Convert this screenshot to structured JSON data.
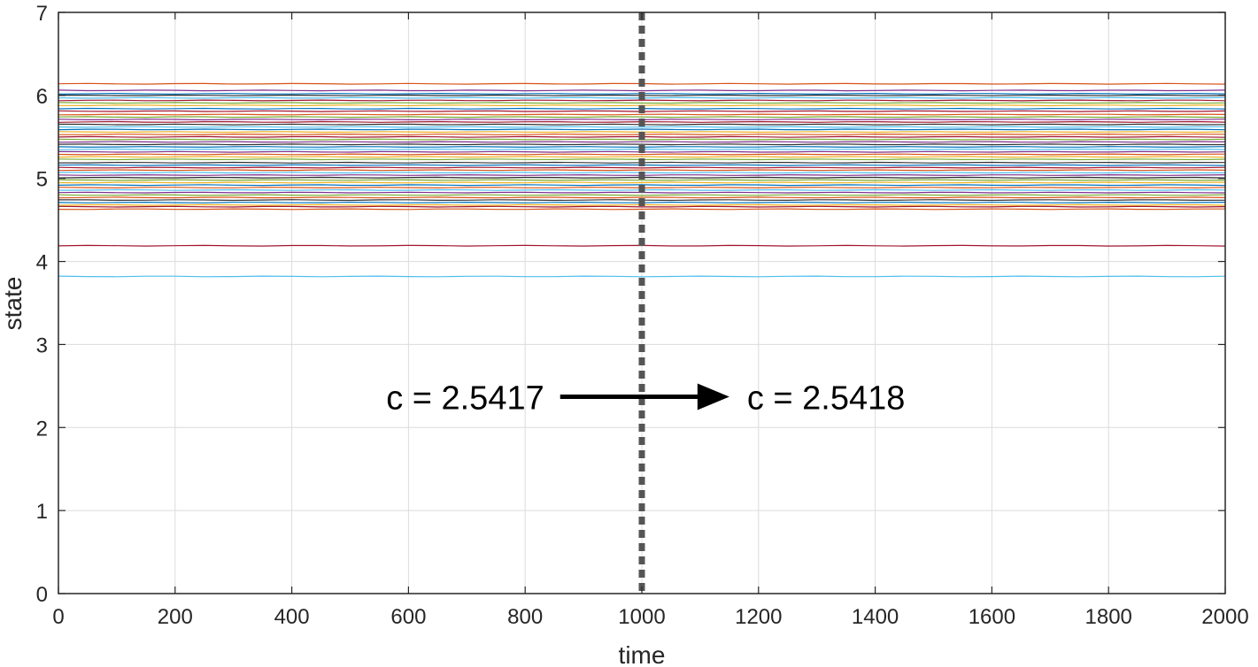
{
  "chart_data": {
    "type": "line",
    "xlabel": "time",
    "ylabel": "state",
    "xlim": [
      0,
      2000
    ],
    "ylim": [
      0,
      7
    ],
    "xticks": [
      0,
      200,
      400,
      600,
      800,
      1000,
      1200,
      1400,
      1600,
      1800,
      2000
    ],
    "yticks": [
      0,
      1,
      2,
      3,
      4,
      5,
      6,
      7
    ],
    "grid": true,
    "legend": "none",
    "x_range_of_series": [
      0,
      2000
    ],
    "series": [
      {
        "values": [
          6.14,
          6.14
        ],
        "color": "#D95319"
      },
      {
        "values": [
          6.06,
          6.06
        ],
        "color": "#7E2F8E"
      },
      {
        "values": [
          6.02,
          6.02
        ],
        "color": "#0072BD"
      },
      {
        "values": [
          6.0,
          6.0
        ],
        "color": "#333333"
      },
      {
        "values": [
          5.97,
          5.97
        ],
        "color": "#4DBEEE"
      },
      {
        "values": [
          5.94,
          5.94
        ],
        "color": "#A2142F"
      },
      {
        "values": [
          5.91,
          5.91
        ],
        "color": "#77AC30"
      },
      {
        "values": [
          5.88,
          5.88
        ],
        "color": "#EDB120"
      },
      {
        "values": [
          5.84,
          5.84
        ],
        "color": "#0072BD"
      },
      {
        "values": [
          5.81,
          5.81
        ],
        "color": "#A2142F"
      },
      {
        "values": [
          5.77,
          5.77
        ],
        "color": "#D95319"
      },
      {
        "values": [
          5.74,
          5.74
        ],
        "color": "#77AC30"
      },
      {
        "values": [
          5.71,
          5.71
        ],
        "color": "#7E2F8E"
      },
      {
        "values": [
          5.68,
          5.68
        ],
        "color": "#A2142F"
      },
      {
        "values": [
          5.65,
          5.65
        ],
        "color": "#333333"
      },
      {
        "values": [
          5.62,
          5.62
        ],
        "color": "#4DBEEE"
      },
      {
        "values": [
          5.59,
          5.59
        ],
        "color": "#0072BD"
      },
      {
        "values": [
          5.56,
          5.56
        ],
        "color": "#EDB120"
      },
      {
        "values": [
          5.53,
          5.53
        ],
        "color": "#D95319"
      },
      {
        "values": [
          5.5,
          5.5
        ],
        "color": "#A2142F"
      },
      {
        "values": [
          5.47,
          5.47
        ],
        "color": "#77AC30"
      },
      {
        "values": [
          5.44,
          5.44
        ],
        "color": "#7E2F8E"
      },
      {
        "values": [
          5.41,
          5.41
        ],
        "color": "#333333"
      },
      {
        "values": [
          5.38,
          5.38
        ],
        "color": "#0072BD"
      },
      {
        "values": [
          5.35,
          5.35
        ],
        "color": "#4DBEEE"
      },
      {
        "values": [
          5.32,
          5.32
        ],
        "color": "#7E2F8E"
      },
      {
        "values": [
          5.29,
          5.29
        ],
        "color": "#D95319"
      },
      {
        "values": [
          5.26,
          5.26
        ],
        "color": "#EDB120"
      },
      {
        "values": [
          5.23,
          5.23
        ],
        "color": "#77AC30"
      },
      {
        "values": [
          5.19,
          5.19
        ],
        "color": "#333333"
      },
      {
        "values": [
          5.16,
          5.16
        ],
        "color": "#0072BD"
      },
      {
        "values": [
          5.13,
          5.13
        ],
        "color": "#A2142F"
      },
      {
        "values": [
          5.1,
          5.1
        ],
        "color": "#D95319"
      },
      {
        "values": [
          5.07,
          5.07
        ],
        "color": "#4DBEEE"
      },
      {
        "values": [
          5.04,
          5.04
        ],
        "color": "#7E2F8E"
      },
      {
        "values": [
          5.01,
          5.01
        ],
        "color": "#333333"
      },
      {
        "values": [
          4.98,
          4.98
        ],
        "color": "#77AC30"
      },
      {
        "values": [
          4.95,
          4.95
        ],
        "color": "#EDB120"
      },
      {
        "values": [
          4.92,
          4.92
        ],
        "color": "#0072BD"
      },
      {
        "values": [
          4.89,
          4.89
        ],
        "color": "#D95319"
      },
      {
        "values": [
          4.86,
          4.86
        ],
        "color": "#4DBEEE"
      },
      {
        "values": [
          4.83,
          4.83
        ],
        "color": "#7E2F8E"
      },
      {
        "values": [
          4.8,
          4.8
        ],
        "color": "#77AC30"
      },
      {
        "values": [
          4.77,
          4.77
        ],
        "color": "#D95319"
      },
      {
        "values": [
          4.74,
          4.74
        ],
        "color": "#333333"
      },
      {
        "values": [
          4.71,
          4.71
        ],
        "color": "#0072BD"
      },
      {
        "values": [
          4.68,
          4.68
        ],
        "color": "#EDB120"
      },
      {
        "values": [
          4.66,
          4.66
        ],
        "color": "#A2142F"
      },
      {
        "values": [
          4.63,
          4.63
        ],
        "color": "#D95319"
      },
      {
        "values": [
          4.19,
          4.19
        ],
        "color": "#A2142F"
      },
      {
        "values": [
          3.82,
          3.82
        ],
        "color": "#4DBEEE"
      }
    ],
    "divider": {
      "x": 1000,
      "style": "dotted",
      "color": "#555555"
    },
    "annotations": {
      "before": "c = 2.5417",
      "after": "c = 2.5418",
      "y": 2.37,
      "arrow": {
        "from_x": 860,
        "to_x": 1150
      }
    }
  }
}
